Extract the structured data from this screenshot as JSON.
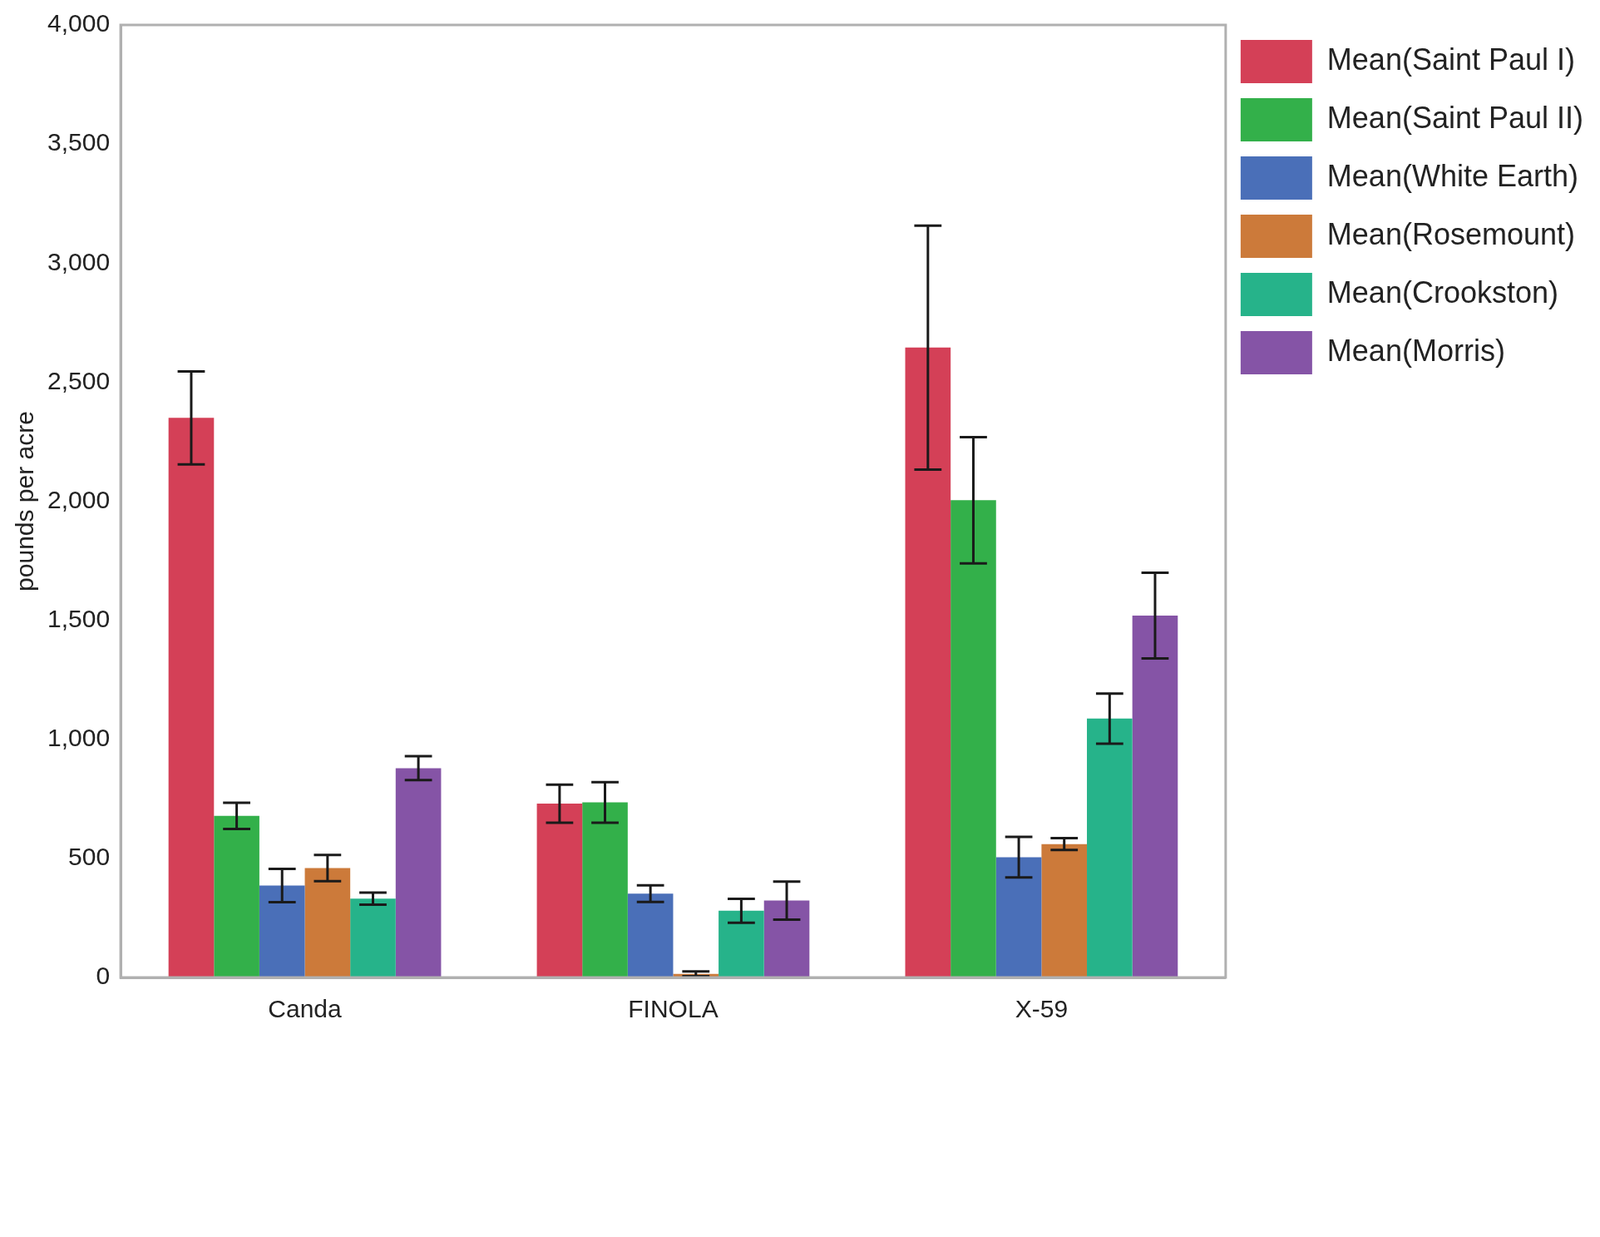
{
  "chart_data": {
    "type": "bar",
    "y_label": "pounds per acre",
    "categories": [
      "Canda",
      "FINOLA",
      "X-59"
    ],
    "ylim": [
      0,
      4000
    ],
    "yticks": [
      0,
      500,
      1000,
      1500,
      2000,
      2500,
      3000,
      3500,
      4000
    ],
    "grid": false,
    "legend": "right",
    "series": [
      {
        "name": "Mean(Saint Paul I)",
        "color": "#d44057",
        "values": [
          2350,
          730,
          2645
        ],
        "errors": [
          195,
          80,
          512
        ]
      },
      {
        "name": "Mean(Saint Paul II)",
        "color": "#33b04a",
        "values": [
          679,
          735,
          2004
        ],
        "errors": [
          55,
          85,
          265
        ]
      },
      {
        "name": "Mean(White Earth)",
        "color": "#4a6fb8",
        "values": [
          386,
          352,
          505
        ],
        "errors": [
          70,
          35,
          85
        ]
      },
      {
        "name": "Mean(Rosemount)",
        "color": "#cc7a3a",
        "values": [
          459,
          15,
          560
        ],
        "errors": [
          55,
          10,
          25
        ]
      },
      {
        "name": "Mean(Crookston)",
        "color": "#26b38a",
        "values": [
          331,
          280,
          1087
        ],
        "errors": [
          25,
          50,
          105
        ]
      },
      {
        "name": "Mean(Morris)",
        "color": "#8554a6",
        "values": [
          879,
          323,
          1520
        ],
        "errors": [
          50,
          80,
          180
        ]
      }
    ]
  }
}
